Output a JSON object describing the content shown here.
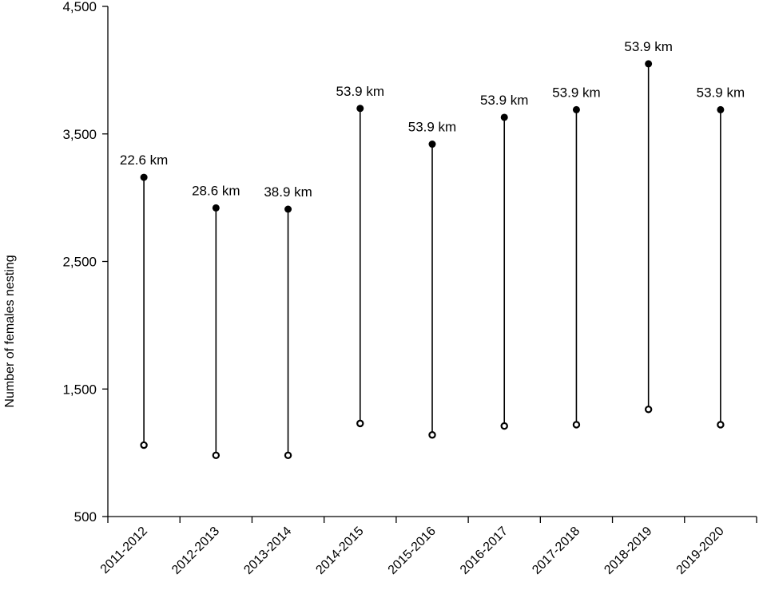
{
  "chart_data": {
    "type": "dumbbell",
    "title": "",
    "xlabel": "",
    "ylabel": "Number of females nesting",
    "ylim": [
      500,
      4500
    ],
    "yticks": [
      500,
      1500,
      2500,
      3500,
      4500
    ],
    "ytick_labels": [
      "500",
      "1,500",
      "2,500",
      "3,500",
      "4,500"
    ],
    "grid": false,
    "categories": [
      "2011-2012",
      "2012-2013",
      "2013-2014",
      "2014-2015",
      "2015-2016",
      "2016-2017",
      "2017-2018",
      "2018-2019",
      "2019-2020"
    ],
    "series": [
      {
        "values": [
          3160,
          2920,
          2910,
          3700,
          3420,
          3630,
          3690,
          4050,
          3690
        ]
      },
      {
        "values": [
          1060,
          980,
          980,
          1230,
          1140,
          1210,
          1220,
          1340,
          1220
        ]
      }
    ],
    "annotations": [
      "22.6 km",
      "28.6 km",
      "38.9 km",
      "53.9 km",
      "53.9 km",
      "53.9 km",
      "53.9 km",
      "53.9 km",
      "53.9 km"
    ]
  }
}
